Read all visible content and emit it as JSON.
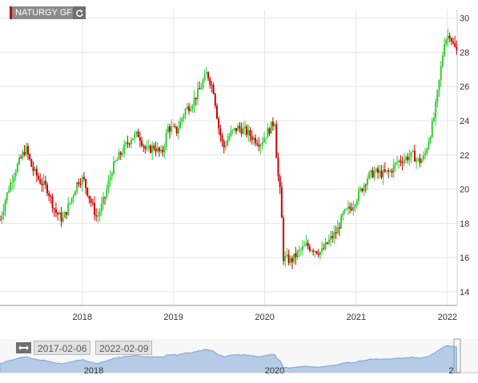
{
  "chart_data": {
    "type": "candlestick",
    "title": "",
    "legend": {
      "label": "NATURGY GF",
      "placement": "top-left",
      "color": "#cc0000"
    },
    "colors": {
      "up": "#33cc33",
      "down": "#cc0000",
      "grid": "#e6e6e6",
      "navigator_area": "#a9c3e3"
    },
    "y_axis": {
      "position": "right",
      "ylim": [
        13.2,
        30.5
      ],
      "ticks": [
        14,
        16,
        18,
        20,
        22,
        24,
        26,
        28,
        30
      ]
    },
    "x_axis": {
      "xlim": [
        "2017-02-06",
        "2022-02-09"
      ],
      "ticks": [
        "2018",
        "2019",
        "2020",
        "2021",
        "2022"
      ],
      "grid": true
    },
    "navigator": {
      "start_date": "2017-02-06",
      "end_date": "2022-02-09",
      "ticks": [
        "2018",
        "2020",
        "2..."
      ]
    },
    "weekly_close_path": [
      [
        "2017-02-06",
        18.2
      ],
      [
        "2017-03-01",
        19.5
      ],
      [
        "2017-04-01",
        20.9
      ],
      [
        "2017-05-01",
        21.8
      ],
      [
        "2017-05-20",
        22.4
      ],
      [
        "2017-06-15",
        21.2
      ],
      [
        "2017-07-15",
        20.5
      ],
      [
        "2017-08-15",
        20.0
      ],
      [
        "2017-09-15",
        18.7
      ],
      [
        "2017-10-15",
        18.2
      ],
      [
        "2017-11-15",
        19.3
      ],
      [
        "2017-12-15",
        20.5
      ],
      [
        "2018-01-05",
        20.6
      ],
      [
        "2018-02-01",
        19.4
      ],
      [
        "2018-03-01",
        18.3
      ],
      [
        "2018-04-01",
        19.5
      ],
      [
        "2018-05-01",
        21.2
      ],
      [
        "2018-06-01",
        22.0
      ],
      [
        "2018-07-15",
        23.0
      ],
      [
        "2018-08-15",
        23.2
      ],
      [
        "2018-09-15",
        22.2
      ],
      [
        "2018-10-15",
        22.5
      ],
      [
        "2018-11-15",
        22.0
      ],
      [
        "2018-12-10",
        23.6
      ],
      [
        "2019-01-15",
        23.4
      ],
      [
        "2019-02-15",
        24.6
      ],
      [
        "2019-03-15",
        25.0
      ],
      [
        "2019-04-15",
        25.8
      ],
      [
        "2019-05-15",
        26.8
      ],
      [
        "2019-06-10",
        25.8
      ],
      [
        "2019-07-01",
        23.6
      ],
      [
        "2019-07-20",
        22.4
      ],
      [
        "2019-08-15",
        23.2
      ],
      [
        "2019-09-15",
        23.6
      ],
      [
        "2019-10-15",
        23.4
      ],
      [
        "2019-11-15",
        23.0
      ],
      [
        "2019-12-15",
        22.7
      ],
      [
        "2020-01-15",
        23.4
      ],
      [
        "2020-02-10",
        24.0
      ],
      [
        "2020-02-20",
        21.2
      ],
      [
        "2020-03-05",
        19.5
      ],
      [
        "2020-03-16",
        16.0
      ],
      [
        "2020-04-15",
        15.8
      ],
      [
        "2020-05-15",
        16.3
      ],
      [
        "2020-06-15",
        16.7
      ],
      [
        "2020-07-15",
        16.5
      ],
      [
        "2020-08-15",
        16.3
      ],
      [
        "2020-09-15",
        17.0
      ],
      [
        "2020-10-15",
        17.5
      ],
      [
        "2020-11-10",
        18.5
      ],
      [
        "2020-12-15",
        19.0
      ],
      [
        "2021-01-15",
        19.8
      ],
      [
        "2021-02-15",
        20.7
      ],
      [
        "2021-03-15",
        21.0
      ],
      [
        "2021-04-15",
        20.9
      ],
      [
        "2021-05-15",
        21.0
      ],
      [
        "2021-06-15",
        21.6
      ],
      [
        "2021-07-15",
        21.8
      ],
      [
        "2021-08-15",
        22.0
      ],
      [
        "2021-09-10",
        21.6
      ],
      [
        "2021-10-01",
        21.9
      ],
      [
        "2021-10-20",
        23.0
      ],
      [
        "2021-11-10",
        24.3
      ],
      [
        "2021-12-01",
        26.5
      ],
      [
        "2021-12-20",
        28.7
      ],
      [
        "2022-01-10",
        29.1
      ],
      [
        "2022-01-25",
        28.4
      ],
      [
        "2022-02-09",
        28.0
      ]
    ]
  }
}
